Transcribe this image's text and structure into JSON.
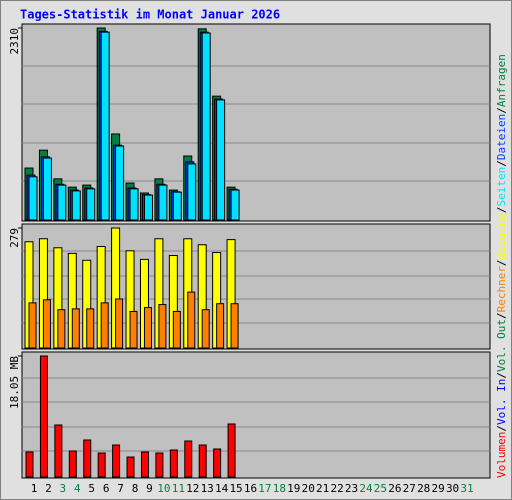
{
  "title": "Tages-Statistik im Monat Januar 2026",
  "legend_separator": "/",
  "chart_data": [
    {
      "type": "bar",
      "ylim": [
        0,
        2310
      ],
      "yticks": [
        2310
      ],
      "series": [
        {
          "name": "Anfragen",
          "color": "#008040",
          "values": [
            625,
            840,
            495,
            395,
            420,
            2310,
            1035,
            445,
            325,
            495,
            360,
            770,
            2300,
            1490,
            395,
            null,
            null,
            null,
            null,
            null,
            null,
            null,
            null,
            null,
            null,
            null,
            null,
            null,
            null,
            null,
            null
          ]
        },
        {
          "name": "Dateien",
          "color": "#0040ff",
          "values": [
            540,
            760,
            430,
            360,
            385,
            2270,
            900,
            385,
            305,
            430,
            340,
            700,
            2260,
            1455,
            370,
            null,
            null,
            null,
            null,
            null,
            null,
            null,
            null,
            null,
            null,
            null,
            null,
            null,
            null,
            null,
            null
          ]
        },
        {
          "name": "Seiten",
          "color": "#00e0ff",
          "values": [
            520,
            745,
            420,
            350,
            375,
            2260,
            890,
            375,
            300,
            420,
            335,
            675,
            2250,
            1445,
            360,
            null,
            null,
            null,
            null,
            null,
            null,
            null,
            null,
            null,
            null,
            null,
            null,
            null,
            null,
            null,
            null
          ]
        }
      ]
    },
    {
      "type": "bar",
      "ylim": [
        0,
        279
      ],
      "yticks": [
        279
      ],
      "series": [
        {
          "name": "Besuche",
          "color": "#ffff00",
          "values": [
            247,
            254,
            233,
            220,
            204,
            236,
            279,
            226,
            206,
            254,
            215,
            254,
            240,
            222,
            252,
            null,
            null,
            null,
            null,
            null,
            null,
            null,
            null,
            null,
            null,
            null,
            null,
            null,
            null,
            null,
            null
          ]
        },
        {
          "name": "Rechner",
          "color": "#ff8000",
          "values": [
            105,
            112,
            89,
            91,
            91,
            105,
            114,
            85,
            94,
            101,
            85,
            130,
            89,
            103,
            103,
            null,
            null,
            null,
            null,
            null,
            null,
            null,
            null,
            null,
            null,
            null,
            null,
            null,
            null,
            null,
            null
          ]
        }
      ]
    },
    {
      "type": "bar",
      "ylim": [
        0,
        18.05
      ],
      "yticks": [
        {
          "value": 18.05,
          "label": "18.05 MB"
        }
      ],
      "categories": [
        "1",
        "2",
        "3",
        "4",
        "5",
        "6",
        "7",
        "8",
        "9",
        "10",
        "11",
        "12",
        "13",
        "14",
        "15",
        "16",
        "17",
        "18",
        "19",
        "20",
        "21",
        "22",
        "23",
        "24",
        "25",
        "26",
        "27",
        "28",
        "29",
        "30",
        "31"
      ],
      "category_colors": [
        "#000000",
        "#000000",
        "#008040",
        "#008040",
        "#000000",
        "#000000",
        "#000000",
        "#000000",
        "#000000",
        "#008040",
        "#008040",
        "#000000",
        "#000000",
        "#000000",
        "#000000",
        "#000000",
        "#008040",
        "#008040",
        "#000000",
        "#000000",
        "#000000",
        "#000000",
        "#000000",
        "#008040",
        "#008040",
        "#000000",
        "#000000",
        "#000000",
        "#000000",
        "#000000",
        "#008040"
      ],
      "series": [
        {
          "name": "Volumen",
          "color": "#ff0000",
          "values": [
            3.73,
            18.05,
            7.76,
            3.88,
            5.52,
            3.58,
            4.77,
            2.98,
            3.73,
            3.58,
            4.03,
            5.37,
            4.77,
            4.18,
            7.91,
            null,
            null,
            null,
            null,
            null,
            null,
            null,
            null,
            null,
            null,
            null,
            null,
            null,
            null,
            null,
            null
          ]
        },
        {
          "name": "Vol. In",
          "color": "#0000ff",
          "values": [
            null,
            null,
            null,
            null,
            null,
            null,
            null,
            null,
            null,
            null,
            null,
            null,
            null,
            null,
            null,
            null,
            null,
            null,
            null,
            null,
            null,
            null,
            null,
            null,
            null,
            null,
            null,
            null,
            null,
            null,
            null
          ]
        },
        {
          "name": "Vol. Out",
          "color": "#008040",
          "values": [
            null,
            null,
            null,
            null,
            null,
            null,
            null,
            null,
            null,
            null,
            null,
            null,
            null,
            null,
            null,
            null,
            null,
            null,
            null,
            null,
            null,
            null,
            null,
            null,
            null,
            null,
            null,
            null,
            null,
            null,
            null
          ]
        }
      ]
    }
  ]
}
